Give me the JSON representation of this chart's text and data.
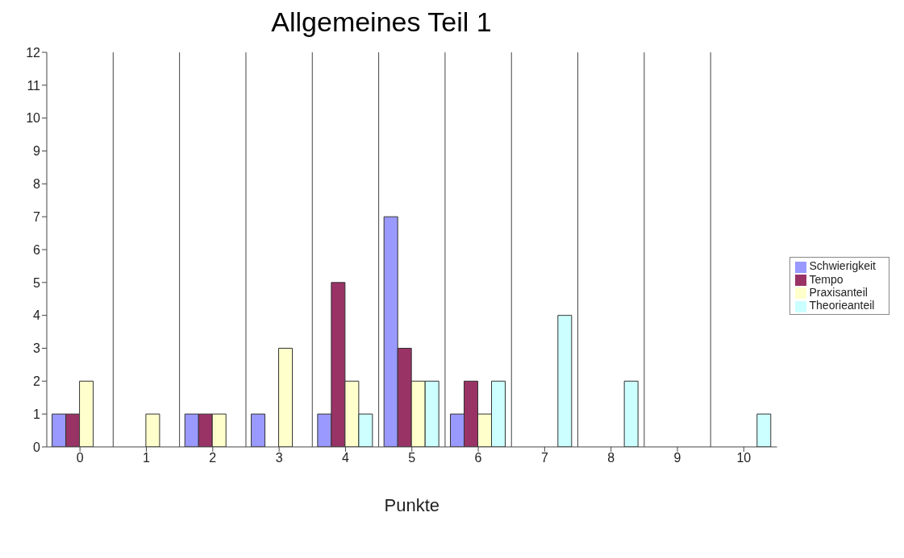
{
  "chart_data": {
    "type": "bar",
    "title": "Allgemeines Teil 1",
    "xlabel": "Punkte",
    "categories": [
      "0",
      "1",
      "2",
      "3",
      "4",
      "5",
      "6",
      "7",
      "8",
      "9",
      "10"
    ],
    "series": [
      {
        "name": "Schwierigkeit",
        "color": "#9999ff",
        "values": [
          1,
          0,
          1,
          1,
          1,
          7,
          1,
          0,
          0,
          0,
          0
        ]
      },
      {
        "name": "Tempo",
        "color": "#993366",
        "values": [
          1,
          0,
          1,
          0,
          5,
          3,
          2,
          0,
          0,
          0,
          0
        ]
      },
      {
        "name": "Praxisanteil",
        "color": "#ffffcc",
        "values": [
          2,
          1,
          1,
          3,
          2,
          2,
          1,
          0,
          0,
          0,
          0
        ]
      },
      {
        "name": "Theorieanteil",
        "color": "#ccffff",
        "values": [
          0,
          0,
          0,
          0,
          1,
          2,
          2,
          4,
          2,
          0,
          1
        ]
      }
    ],
    "ylim": [
      0,
      12
    ],
    "yticks": [
      0,
      1,
      2,
      3,
      4,
      5,
      6,
      7,
      8,
      9,
      10,
      11,
      12
    ],
    "grid": "x",
    "legend": "right"
  }
}
